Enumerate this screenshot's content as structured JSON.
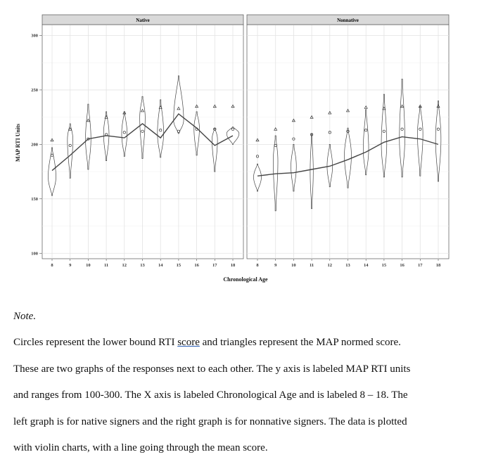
{
  "chart_data": {
    "type": "violin",
    "xlabel": "Chronological Age",
    "ylabel": "MAP RTI Units",
    "ylim": [
      95,
      310
    ],
    "yticks": [
      100,
      150,
      200,
      250,
      300
    ],
    "x_categories": [
      8,
      9,
      10,
      11,
      12,
      13,
      14,
      15,
      16,
      17,
      18
    ],
    "grid": true,
    "panels": [
      {
        "name": "Native",
        "violins": [
          {
            "age": 8,
            "min": 153,
            "max": 197,
            "widest_at": 170,
            "width": 0.5
          },
          {
            "age": 9,
            "min": 169,
            "max": 219,
            "widest_at": 205,
            "width": 0.35
          },
          {
            "age": 10,
            "min": 177,
            "max": 237,
            "widest_at": 205,
            "width": 0.35
          },
          {
            "age": 11,
            "min": 185,
            "max": 230,
            "widest_at": 210,
            "width": 0.35
          },
          {
            "age": 12,
            "min": 189,
            "max": 230,
            "widest_at": 210,
            "width": 0.35
          },
          {
            "age": 13,
            "min": 187,
            "max": 244,
            "widest_at": 225,
            "width": 0.35
          },
          {
            "age": 14,
            "min": 188,
            "max": 241,
            "widest_at": 210,
            "width": 0.4
          },
          {
            "age": 15,
            "min": 210,
            "max": 263,
            "widest_at": 222,
            "width": 0.65
          },
          {
            "age": 16,
            "min": 190,
            "max": 230,
            "widest_at": 215,
            "width": 0.35
          },
          {
            "age": 17,
            "min": 175,
            "max": 215,
            "widest_at": 205,
            "width": 0.35
          },
          {
            "age": 18,
            "min": 200,
            "max": 216,
            "widest_at": 210,
            "width": 0.8
          }
        ],
        "lower_bound_rti": [
          190,
          199,
          205,
          209,
          211,
          212,
          213,
          212,
          214,
          214,
          214
        ],
        "map_normed": [
          204,
          214,
          222,
          225,
          229,
          231,
          234,
          233,
          235,
          235,
          235
        ],
        "mean": [
          176,
          190,
          205,
          208,
          206,
          219,
          206,
          228,
          215,
          199,
          208
        ]
      },
      {
        "name": "Nonnative",
        "violins": [
          {
            "age": 8,
            "min": 157,
            "max": 182,
            "widest_at": 170,
            "width": 0.5
          },
          {
            "age": 9,
            "min": 139,
            "max": 208,
            "widest_at": 185,
            "width": 0.3
          },
          {
            "age": 10,
            "min": 157,
            "max": 200,
            "widest_at": 180,
            "width": 0.35
          },
          {
            "age": 11,
            "min": 141,
            "max": 210,
            "widest_at": 175,
            "width": 0.2
          },
          {
            "age": 12,
            "min": 161,
            "max": 200,
            "widest_at": 180,
            "width": 0.35
          },
          {
            "age": 13,
            "min": 160,
            "max": 215,
            "widest_at": 190,
            "width": 0.45
          },
          {
            "age": 14,
            "min": 172,
            "max": 232,
            "widest_at": 195,
            "width": 0.35
          },
          {
            "age": 15,
            "min": 170,
            "max": 246,
            "widest_at": 200,
            "width": 0.35
          },
          {
            "age": 16,
            "min": 170,
            "max": 260,
            "widest_at": 205,
            "width": 0.35
          },
          {
            "age": 17,
            "min": 171,
            "max": 235,
            "widest_at": 210,
            "width": 0.35
          },
          {
            "age": 18,
            "min": 166,
            "max": 240,
            "widest_at": 205,
            "width": 0.35
          }
        ],
        "lower_bound_rti": [
          189,
          199,
          205,
          209,
          211,
          212,
          213,
          212,
          214,
          214,
          214
        ],
        "map_normed": [
          204,
          214,
          222,
          225,
          229,
          231,
          234,
          233,
          235,
          235,
          235
        ],
        "mean": [
          171,
          173,
          174,
          177,
          180,
          186,
          193,
          202,
          207,
          205,
          200
        ]
      }
    ]
  },
  "note": {
    "title": "Note.",
    "line1_before": "Circles represent the lower bound RTI ",
    "line1_underlined": "score",
    "line1_after": " and triangles represent the MAP normed score.",
    "line2": "These are two graphs of the responses next to each other. The y axis is labeled MAP RTI units",
    "line3": "and ranges from 100-300. The X axis is labeled Chronological Age and is labeled 8 – 18. The",
    "line4": "left graph is for native signers and the right graph is for nonnative signers. The data is plotted",
    "line5": "with violin charts, with a line going through the mean score."
  }
}
